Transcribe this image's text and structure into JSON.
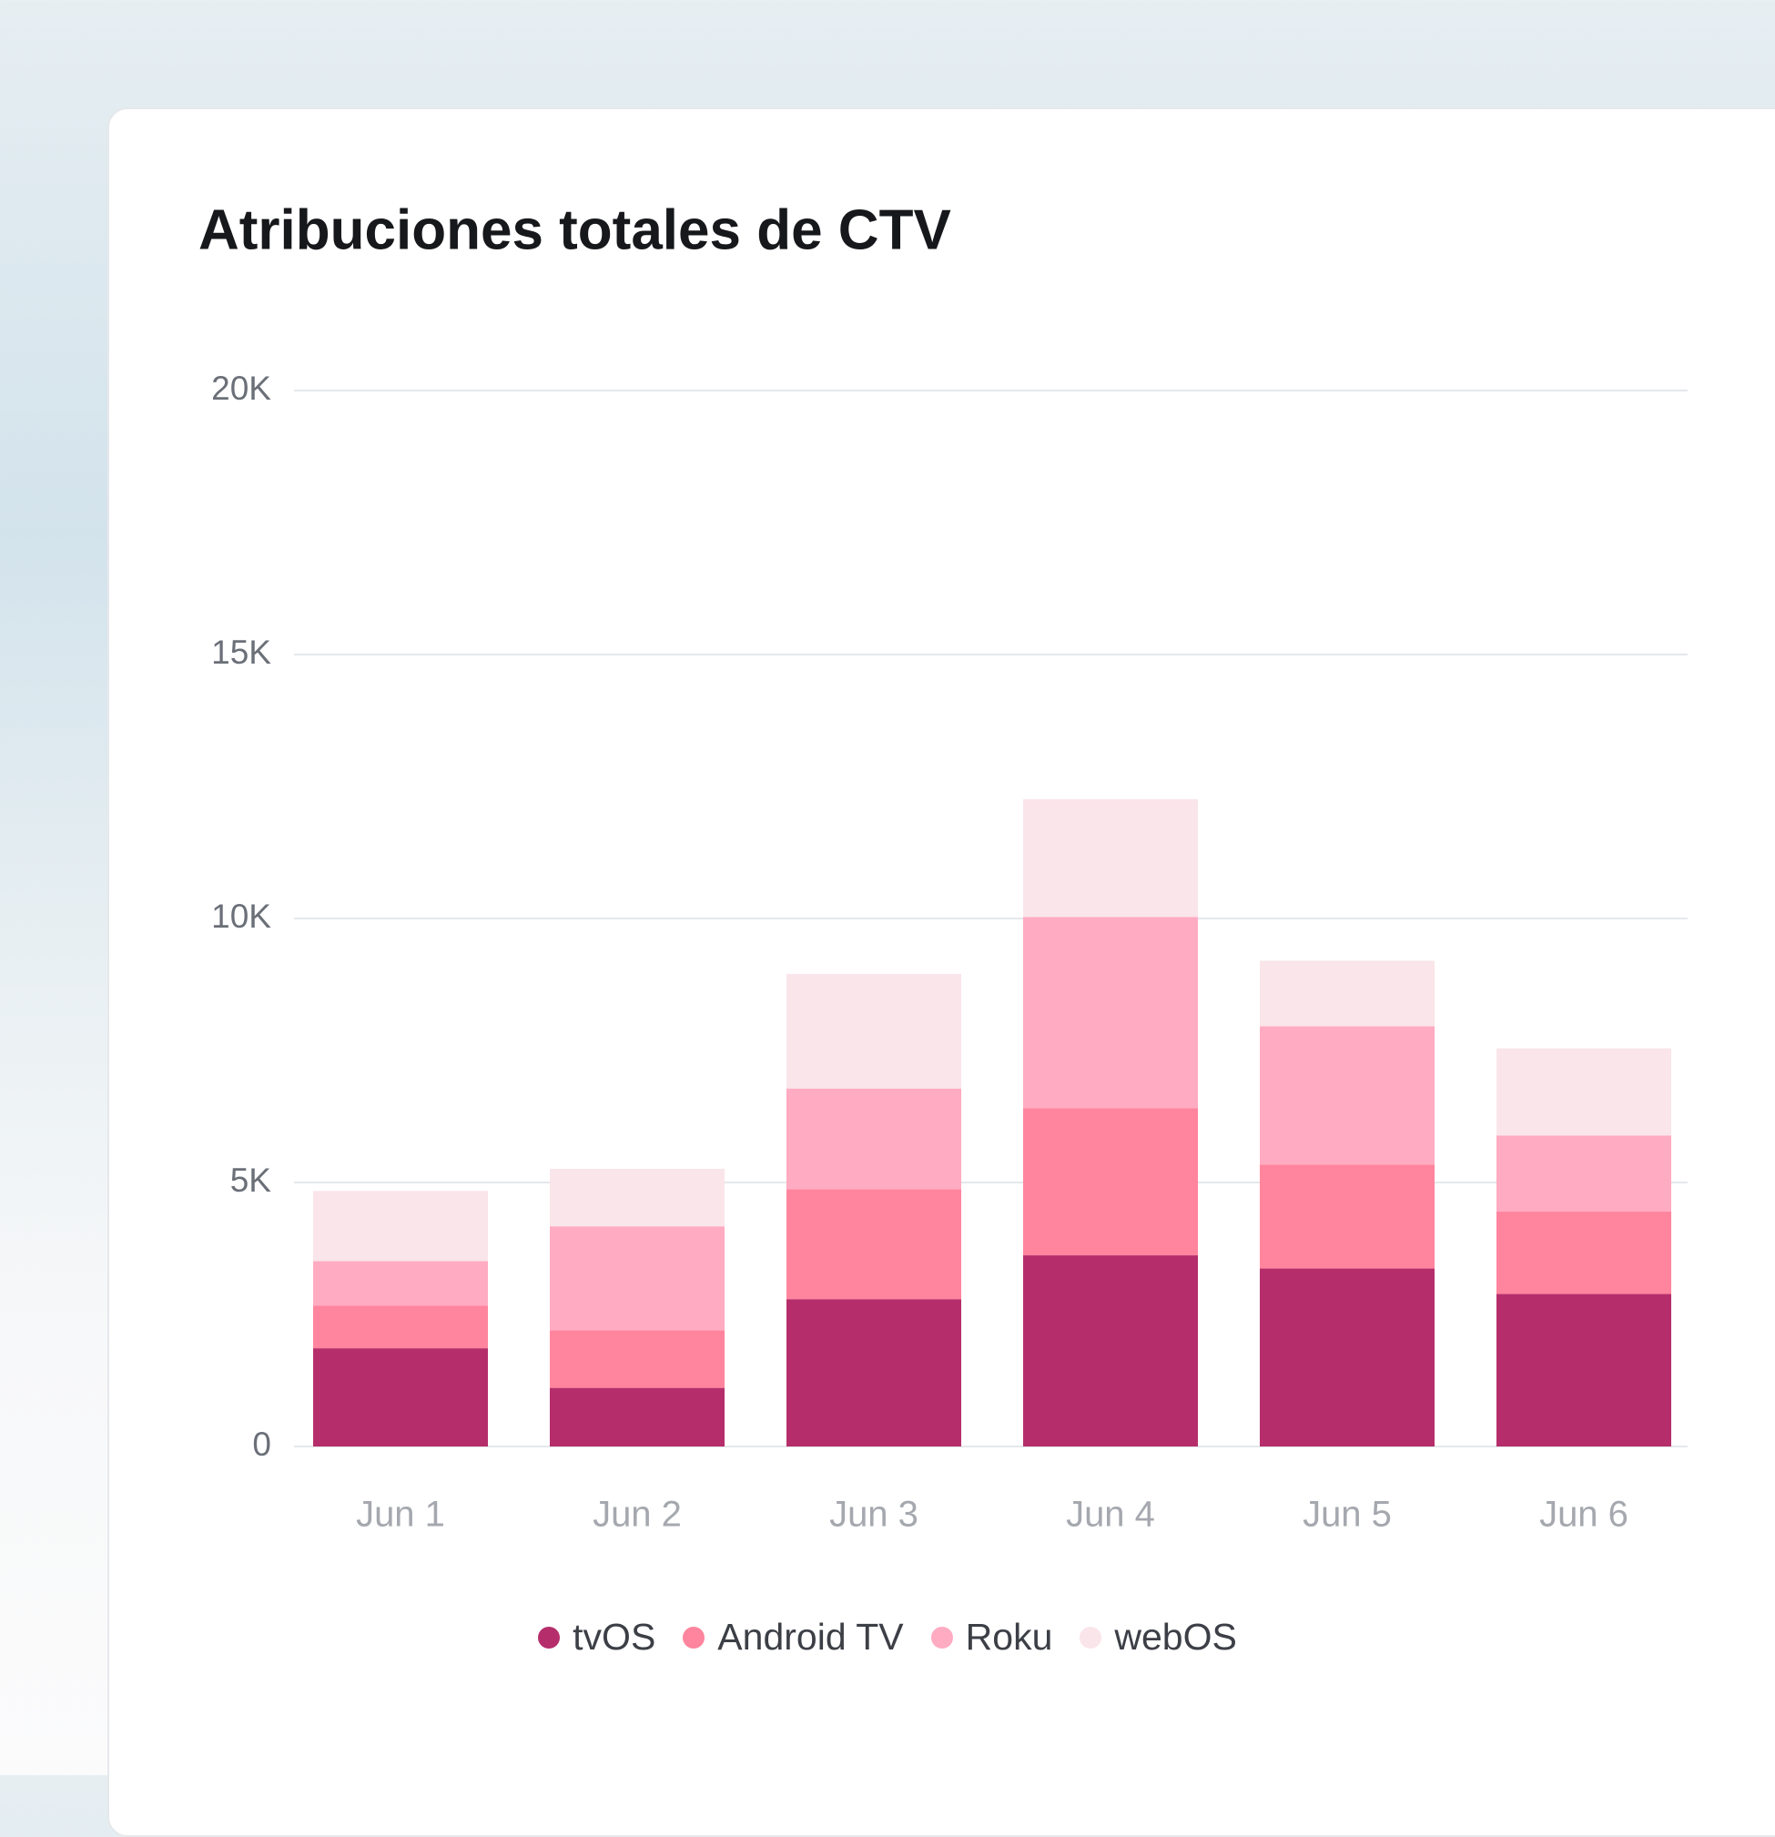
{
  "chart_data": {
    "type": "stacked-bar",
    "title": "Atribuciones totales de CTV",
    "categories": [
      "Jun 1",
      "Jun 2",
      "Jun 3",
      "Jun 4",
      "Jun 5",
      "Jun 6"
    ],
    "series": [
      {
        "name": "tvOS",
        "color": "#b52e6b",
        "values": [
          1860,
          1110,
          2790,
          3620,
          3370,
          2890
        ]
      },
      {
        "name": "Android TV",
        "color": "#ff849d",
        "values": [
          810,
          1090,
          2080,
          2790,
          1970,
          1560
        ]
      },
      {
        "name": "Roku",
        "color": "#ffabc2",
        "values": [
          840,
          1970,
          1910,
          3620,
          2620,
          1440
        ]
      },
      {
        "name": "webOS",
        "color": "#fae5ea",
        "values": [
          1330,
          1090,
          2170,
          2230,
          1240,
          1650
        ]
      }
    ],
    "ylim": [
      0,
      20000
    ],
    "yticks": [
      0,
      {
        "value": 5000,
        "label": "5K"
      },
      {
        "value": 10000,
        "label": "10K"
      },
      {
        "value": 15000,
        "label": "15K"
      },
      {
        "value": 20000,
        "label": "20K"
      }
    ],
    "grid": true
  }
}
